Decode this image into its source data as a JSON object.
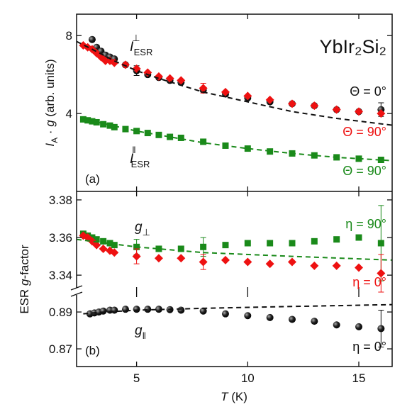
{
  "chart_data": [
    {
      "type": "scatter",
      "title": "YbIr₂Si₂",
      "panel_label": "(a)",
      "ylabel": {
        "main": "I",
        "sub": "A",
        "mid": " · ",
        "g": "g",
        "rest": " (arb. units)"
      },
      "annotations": [
        {
          "main": "I",
          "sup": "⊥",
          "sub": "ESR"
        },
        {
          "main": "I",
          "sup": "ǁ",
          "sub": "ESR"
        }
      ],
      "xlim": [
        2.3,
        16.5
      ],
      "xticks": [
        5,
        10,
        15
      ],
      "ylim": [
        0,
        9.1
      ],
      "yticks": [
        4,
        8
      ],
      "series": [
        {
          "name": "Θ = 0°",
          "color": "#111111",
          "marker": "circle",
          "x": [
            3.0,
            3.2,
            3.4,
            3.6,
            3.8,
            4.0,
            4.5,
            5,
            5.5,
            6,
            6.5,
            7,
            8,
            9,
            10,
            11,
            12,
            13,
            14,
            15,
            16
          ],
          "values": [
            7.8,
            7.4,
            7.2,
            7.0,
            6.9,
            6.8,
            6.5,
            6.2,
            6.0,
            5.85,
            5.7,
            5.6,
            5.2,
            5.0,
            4.8,
            4.6,
            4.5,
            4.4,
            4.2,
            4.1,
            4.2
          ],
          "errors": [
            null,
            null,
            null,
            null,
            null,
            null,
            null,
            0.25,
            null,
            null,
            null,
            null,
            null,
            null,
            null,
            null,
            null,
            null,
            null,
            null,
            0.35
          ]
        },
        {
          "name": "Θ = 90°",
          "color": "#ee1111",
          "marker": "diamond",
          "x": [
            2.6,
            2.8,
            3.0,
            3.2,
            3.4,
            3.6,
            3.8,
            4.0,
            4.5,
            5,
            5.5,
            6,
            6.5,
            7,
            8,
            9,
            10,
            11,
            12,
            13,
            14,
            15,
            16
          ],
          "values": [
            7.5,
            7.4,
            7.3,
            7.1,
            6.9,
            6.7,
            6.7,
            6.6,
            6.5,
            6.3,
            6.1,
            5.9,
            5.8,
            5.7,
            5.3,
            5.1,
            4.9,
            4.7,
            4.5,
            4.4,
            4.2,
            4.1,
            4.0
          ],
          "errors": [
            null,
            null,
            null,
            null,
            null,
            null,
            null,
            null,
            null,
            null,
            null,
            null,
            null,
            null,
            0.25,
            null,
            null,
            null,
            null,
            null,
            null,
            null,
            null
          ]
        },
        {
          "name": "Θ = 90°",
          "color": "#1a8a1a",
          "marker": "square",
          "x": [
            2.6,
            2.8,
            3.0,
            3.2,
            3.5,
            3.8,
            4.0,
            4.5,
            5,
            5.5,
            6,
            6.5,
            7,
            8,
            9,
            10,
            11,
            12,
            13,
            14,
            15,
            16
          ],
          "values": [
            3.7,
            3.65,
            3.6,
            3.55,
            3.45,
            3.38,
            3.3,
            3.2,
            3.1,
            3.0,
            2.9,
            2.8,
            2.75,
            2.55,
            2.35,
            2.2,
            2.05,
            1.95,
            1.85,
            1.75,
            1.68,
            1.62
          ]
        },
        {
          "color": "#111111",
          "marker": "dash",
          "x": [
            2.3,
            3,
            4,
            5,
            6,
            8,
            10,
            12,
            14,
            16.5
          ],
          "values": [
            7.7,
            7.3,
            6.7,
            6.2,
            5.8,
            5.1,
            4.6,
            4.1,
            3.75,
            3.4
          ]
        },
        {
          "color": "#1a8a1a",
          "marker": "dash",
          "x": [
            2.5,
            5,
            8,
            10,
            12,
            14,
            16.5
          ],
          "values": [
            3.75,
            3.1,
            2.5,
            2.2,
            1.95,
            1.75,
            1.58
          ]
        }
      ]
    },
    {
      "type": "scatter",
      "panel_label": "(b)",
      "ylabel": {
        "pre": "ESR ",
        "g": "g",
        "rest": "-factor"
      },
      "annotations": [
        {
          "main": "g",
          "sub": "⊥"
        }
      ],
      "xlim": [
        2.3,
        16.5
      ],
      "xticks": [
        5,
        10,
        15
      ],
      "ylim": [
        3.331,
        3.3845
      ],
      "yticks": [
        3.34,
        3.36,
        3.38
      ],
      "series": [
        {
          "name": "η = 90°",
          "color": "#1a8a1a",
          "marker": "square",
          "x": [
            2.6,
            2.8,
            3.0,
            3.2,
            3.5,
            3.8,
            4.0,
            5,
            6,
            7,
            8,
            9,
            10,
            11,
            12,
            13,
            14,
            15,
            16
          ],
          "values": [
            3.362,
            3.361,
            3.36,
            3.359,
            3.358,
            3.357,
            3.356,
            3.355,
            3.354,
            3.354,
            3.355,
            3.356,
            3.357,
            3.357,
            3.357,
            3.358,
            3.359,
            3.36,
            3.357
          ],
          "errors": [
            null,
            null,
            null,
            null,
            null,
            null,
            null,
            0.004,
            null,
            null,
            0.005,
            null,
            null,
            null,
            null,
            null,
            null,
            null,
            0.02
          ]
        },
        {
          "name": "η = 0°",
          "color": "#ee1111",
          "marker": "diamond",
          "x": [
            2.6,
            2.8,
            3.0,
            3.2,
            3.5,
            3.8,
            4.0,
            5,
            6,
            7,
            8,
            9,
            10,
            11,
            12,
            13,
            14,
            15,
            16
          ],
          "values": [
            3.361,
            3.36,
            3.358,
            3.356,
            3.354,
            3.353,
            3.352,
            3.35,
            3.349,
            3.349,
            3.347,
            3.348,
            3.347,
            3.346,
            3.347,
            3.345,
            3.345,
            3.344,
            3.341
          ],
          "errors": [
            null,
            null,
            null,
            null,
            null,
            null,
            null,
            0.004,
            null,
            null,
            0.004,
            null,
            null,
            null,
            null,
            null,
            null,
            null,
            0.01
          ]
        },
        {
          "color": "#1a8a1a",
          "marker": "dash",
          "x": [
            2.3,
            5,
            8,
            12,
            16.5
          ],
          "values": [
            3.359,
            3.355,
            3.352,
            3.35,
            3.348
          ]
        }
      ]
    },
    {
      "type": "scatter",
      "xlabel": {
        "main": "T",
        "rest": " (K)"
      },
      "annotations": [
        {
          "main": "g",
          "sub": "ǁ"
        }
      ],
      "xlim": [
        2.3,
        16.5
      ],
      "xticks": [
        5,
        10,
        15
      ],
      "ylim": [
        0.8604,
        0.9008
      ],
      "yticks": [
        0.87,
        0.89
      ],
      "series": [
        {
          "name": "η = 0°",
          "color": "#111111",
          "marker": "circle",
          "x": [
            2.9,
            3.1,
            3.3,
            3.5,
            3.8,
            4.0,
            4.5,
            5,
            5.5,
            6,
            6.5,
            7,
            8,
            9,
            10,
            11,
            12,
            13,
            14,
            15,
            16
          ],
          "values": [
            0.889,
            0.8895,
            0.89,
            0.8905,
            0.891,
            0.891,
            0.8915,
            0.8915,
            0.8915,
            0.8915,
            0.8913,
            0.891,
            0.8905,
            0.889,
            0.888,
            0.887,
            0.886,
            0.885,
            0.883,
            0.882,
            0.881
          ],
          "errors": [
            null,
            null,
            null,
            null,
            null,
            null,
            null,
            null,
            null,
            null,
            null,
            null,
            null,
            null,
            null,
            null,
            null,
            null,
            null,
            null,
            0.01
          ]
        },
        {
          "color": "#111111",
          "marker": "dash",
          "x": [
            2.6,
            3,
            5,
            8,
            12,
            16.5
          ],
          "values": [
            0.889,
            0.8895,
            0.891,
            0.892,
            0.893,
            0.894
          ]
        }
      ]
    }
  ]
}
